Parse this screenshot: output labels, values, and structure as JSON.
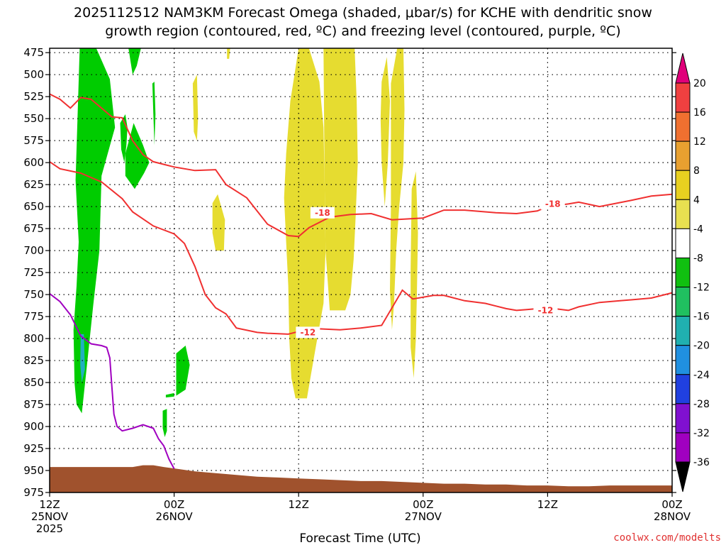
{
  "chart_data": {
    "type": "contour-timeheight",
    "title_line1": "2025112512 NAM3KM Forecast Omega (shaded, μbar/s) for KCHE with dendritic snow",
    "title_line2": "growth region (contoured, red, ºC) and freezing level (contoured, purple, ºC)",
    "xlabel": "Forecast Time (UTC)",
    "credit": "coolwx.com/modelts",
    "x_ticks": [
      {
        "hour": 0,
        "lines": [
          "12Z",
          "25NOV",
          "2025"
        ]
      },
      {
        "hour": 12,
        "lines": [
          "00Z",
          "26NOV"
        ]
      },
      {
        "hour": 24,
        "lines": [
          "12Z"
        ]
      },
      {
        "hour": 36,
        "lines": [
          "00Z",
          "27NOV"
        ]
      },
      {
        "hour": 48,
        "lines": [
          "12Z"
        ]
      },
      {
        "hour": 60,
        "lines": [
          "00Z",
          "28NOV"
        ]
      }
    ],
    "xlim_hours": [
      0,
      60
    ],
    "y_ticks": [
      475,
      500,
      525,
      550,
      575,
      600,
      625,
      650,
      675,
      700,
      725,
      750,
      775,
      800,
      825,
      850,
      875,
      900,
      925,
      950,
      975
    ],
    "ylim_mb": [
      470,
      975
    ],
    "grid": "dotted",
    "colorbar": {
      "labels": [
        "20",
        "16",
        "12",
        "8",
        "4",
        "-4",
        "-8",
        "-12",
        "-16",
        "-20",
        "-24",
        "-28",
        "-32",
        "-36"
      ],
      "colors": [
        "#e0007a",
        "#f04040",
        "#f07030",
        "#e8a030",
        "#e8d020",
        "#e8e050",
        "#ffffff",
        "#10c010",
        "#20c060",
        "#20b0b0",
        "#2090e0",
        "#2040e0",
        "#8010d0",
        "#a000c0",
        "#a8a8a8",
        "#000000"
      ]
    },
    "shading_colors": {
      "green": "#00cc00",
      "yellow": "#e6dc30",
      "cyan": "#20b0c0",
      "terrain": "#a0522d"
    },
    "dendritic_contours": [
      {
        "label": "-18",
        "color": "#f03030",
        "label_at": [
          [
            26.3,
            657
          ],
          [
            48.5,
            647
          ]
        ],
        "points": [
          [
            0,
            522
          ],
          [
            1,
            528
          ],
          [
            2,
            538
          ],
          [
            3,
            526
          ],
          [
            4,
            528
          ],
          [
            5,
            538
          ],
          [
            6,
            548
          ],
          [
            7,
            549
          ],
          [
            8,
            575
          ],
          [
            9,
            591
          ],
          [
            10,
            599
          ],
          [
            11,
            602
          ],
          [
            12,
            605
          ],
          [
            14,
            609
          ],
          [
            16,
            608
          ],
          [
            17,
            625
          ],
          [
            19,
            640
          ],
          [
            21,
            670
          ],
          [
            23,
            683
          ],
          [
            24,
            684
          ],
          [
            25,
            674
          ],
          [
            27,
            662
          ],
          [
            29,
            659
          ],
          [
            31,
            658
          ],
          [
            33,
            665
          ],
          [
            36,
            663
          ],
          [
            38,
            654
          ],
          [
            40,
            654
          ],
          [
            43,
            657
          ],
          [
            45,
            658
          ],
          [
            47,
            655
          ],
          [
            48,
            650
          ],
          [
            50,
            647
          ],
          [
            51,
            645
          ],
          [
            53,
            650
          ],
          [
            56,
            643
          ],
          [
            58,
            638
          ],
          [
            60,
            636
          ]
        ]
      },
      {
        "label": "-12",
        "color": "#f03030",
        "label_at": [
          [
            24.9,
            793
          ],
          [
            47.8,
            768
          ]
        ],
        "points": [
          [
            0,
            599
          ],
          [
            1,
            607
          ],
          [
            3,
            612
          ],
          [
            5,
            622
          ],
          [
            7,
            641
          ],
          [
            8,
            656
          ],
          [
            10,
            672
          ],
          [
            12,
            681
          ],
          [
            13,
            692
          ],
          [
            14,
            718
          ],
          [
            15,
            750
          ],
          [
            16,
            765
          ],
          [
            17,
            772
          ],
          [
            18,
            788
          ],
          [
            20,
            793
          ],
          [
            21,
            794
          ],
          [
            23,
            795
          ],
          [
            24,
            792
          ],
          [
            26,
            789
          ],
          [
            28,
            790
          ],
          [
            30,
            788
          ],
          [
            32,
            785
          ],
          [
            33,
            765
          ],
          [
            34,
            745
          ],
          [
            35,
            755
          ],
          [
            37,
            751
          ],
          [
            38,
            751
          ],
          [
            40,
            757
          ],
          [
            42,
            760
          ],
          [
            43,
            763
          ],
          [
            44,
            766
          ],
          [
            45,
            768
          ],
          [
            46,
            767
          ],
          [
            48,
            765
          ],
          [
            50,
            768
          ],
          [
            51,
            764
          ],
          [
            53,
            759
          ],
          [
            55,
            757
          ],
          [
            58,
            754
          ],
          [
            60,
            748
          ]
        ]
      }
    ],
    "freezing_level": {
      "color": "#a000c0",
      "points": [
        [
          0,
          749
        ],
        [
          1,
          758
        ],
        [
          2,
          773
        ],
        [
          3,
          797
        ],
        [
          4,
          806
        ],
        [
          5,
          808
        ],
        [
          5.5,
          810
        ],
        [
          5.8,
          822
        ],
        [
          6,
          855
        ],
        [
          6.2,
          886
        ],
        [
          6.5,
          900
        ],
        [
          7,
          905
        ],
        [
          8,
          902
        ],
        [
          9,
          898
        ],
        [
          10,
          902
        ],
        [
          10.5,
          914
        ],
        [
          11,
          922
        ],
        [
          11.5,
          937
        ],
        [
          12,
          948
        ]
      ]
    },
    "terrain_top": [
      [
        0,
        946
      ],
      [
        2,
        946
      ],
      [
        4,
        946
      ],
      [
        6,
        946
      ],
      [
        8,
        946
      ],
      [
        9,
        944
      ],
      [
        10,
        944
      ],
      [
        11,
        946
      ],
      [
        14,
        951
      ],
      [
        16,
        953
      ],
      [
        18,
        955
      ],
      [
        20,
        957
      ],
      [
        22,
        958
      ],
      [
        24,
        959
      ],
      [
        26,
        960
      ],
      [
        28,
        961
      ],
      [
        30,
        962
      ],
      [
        32,
        962
      ],
      [
        34,
        963
      ],
      [
        36,
        964
      ],
      [
        38,
        965
      ],
      [
        40,
        965
      ],
      [
        42,
        966
      ],
      [
        44,
        966
      ],
      [
        46,
        967
      ],
      [
        48,
        967
      ],
      [
        50,
        968
      ],
      [
        52,
        968
      ],
      [
        54,
        967
      ],
      [
        56,
        967
      ],
      [
        58,
        967
      ],
      [
        60,
        967
      ]
    ],
    "shading_regions": [
      {
        "color": "green",
        "points": [
          [
            2.9,
            470
          ],
          [
            4.5,
            470
          ],
          [
            5.8,
            505
          ],
          [
            6.3,
            560
          ],
          [
            5.0,
            615
          ],
          [
            4.8,
            700
          ],
          [
            4.2,
            762
          ],
          [
            3.6,
            830
          ],
          [
            3.1,
            885
          ],
          [
            2.6,
            875
          ],
          [
            2.4,
            850
          ],
          [
            2.3,
            790
          ],
          [
            2.6,
            740
          ],
          [
            2.8,
            690
          ],
          [
            2.5,
            620
          ]
        ]
      },
      {
        "color": "green",
        "points": [
          [
            6.8,
            555
          ],
          [
            7.3,
            545
          ],
          [
            7.5,
            560
          ],
          [
            7.4,
            580
          ],
          [
            7.2,
            600
          ],
          [
            6.9,
            585
          ]
        ]
      },
      {
        "color": "green",
        "points": [
          [
            7.3,
            590
          ],
          [
            8.1,
            555
          ],
          [
            9.0,
            580
          ],
          [
            9.6,
            600
          ],
          [
            9.1,
            612
          ],
          [
            8.2,
            630
          ],
          [
            7.3,
            615
          ]
        ]
      },
      {
        "color": "green",
        "points": [
          [
            7.6,
            470
          ],
          [
            8.8,
            470
          ],
          [
            8.4,
            490
          ],
          [
            8.0,
            500
          ]
        ]
      },
      {
        "color": "green",
        "points": [
          [
            9.9,
            510
          ],
          [
            10.1,
            508
          ],
          [
            10.2,
            545
          ],
          [
            10.1,
            580
          ],
          [
            10.0,
            545
          ]
        ]
      },
      {
        "color": "green",
        "points": [
          [
            12.2,
            817
          ],
          [
            13.1,
            808
          ],
          [
            13.5,
            830
          ],
          [
            13.1,
            858
          ],
          [
            12.2,
            865
          ]
        ]
      },
      {
        "color": "green",
        "points": [
          [
            11.2,
            864
          ],
          [
            12.0,
            862
          ],
          [
            12.0,
            866
          ],
          [
            11.2,
            867
          ]
        ]
      },
      {
        "color": "green",
        "points": [
          [
            10.9,
            882
          ],
          [
            11.3,
            880
          ],
          [
            11.3,
            905
          ],
          [
            11.1,
            912
          ],
          [
            10.9,
            902
          ]
        ]
      },
      {
        "color": "cyan",
        "points": [
          [
            3.0,
            795
          ],
          [
            3.3,
            795
          ],
          [
            3.4,
            835
          ],
          [
            3.1,
            850
          ],
          [
            2.95,
            830
          ]
        ]
      },
      {
        "color": "yellow",
        "points": [
          [
            24.0,
            470
          ],
          [
            25.0,
            470
          ],
          [
            26.0,
            508
          ],
          [
            26.4,
            560
          ],
          [
            26.5,
            620
          ],
          [
            26.6,
            700
          ],
          [
            26.4,
            760
          ],
          [
            25.8,
            800
          ],
          [
            25.2,
            840
          ],
          [
            24.8,
            868
          ],
          [
            23.7,
            868
          ],
          [
            23.3,
            845
          ],
          [
            23.1,
            800
          ],
          [
            23.0,
            740
          ],
          [
            22.8,
            690
          ],
          [
            22.6,
            640
          ],
          [
            22.8,
            590
          ],
          [
            23.2,
            530
          ]
        ]
      },
      {
        "color": "yellow",
        "points": [
          [
            26.4,
            470
          ],
          [
            29.4,
            470
          ],
          [
            29.6,
            530
          ],
          [
            29.7,
            600
          ],
          [
            29.5,
            660
          ],
          [
            29.3,
            710
          ],
          [
            29.0,
            750
          ],
          [
            28.5,
            768
          ],
          [
            27.0,
            768
          ],
          [
            26.6,
            700
          ],
          [
            26.5,
            620
          ]
        ]
      },
      {
        "color": "yellow",
        "points": [
          [
            32.0,
            508
          ],
          [
            32.5,
            480
          ],
          [
            32.8,
            530
          ],
          [
            32.6,
            600
          ],
          [
            32.3,
            650
          ],
          [
            32.0,
            600
          ],
          [
            31.9,
            550
          ]
        ]
      },
      {
        "color": "yellow",
        "points": [
          [
            32.9,
            510
          ],
          [
            33.5,
            470
          ],
          [
            34.1,
            470
          ],
          [
            34.2,
            540
          ],
          [
            34.1,
            600
          ],
          [
            33.7,
            650
          ],
          [
            33.4,
            700
          ],
          [
            33.2,
            760
          ],
          [
            33.0,
            790
          ],
          [
            32.8,
            745
          ],
          [
            32.9,
            650
          ],
          [
            32.9,
            560
          ]
        ]
      },
      {
        "color": "yellow",
        "points": [
          [
            34.9,
            630
          ],
          [
            35.3,
            610
          ],
          [
            35.5,
            680
          ],
          [
            35.4,
            750
          ],
          [
            35.3,
            800
          ],
          [
            35.1,
            845
          ],
          [
            34.8,
            810
          ],
          [
            34.8,
            720
          ]
        ]
      },
      {
        "color": "yellow",
        "points": [
          [
            15.7,
            646
          ],
          [
            16.2,
            636
          ],
          [
            16.9,
            665
          ],
          [
            16.8,
            700
          ],
          [
            16.0,
            700
          ],
          [
            15.7,
            680
          ]
        ]
      },
      {
        "color": "yellow",
        "points": [
          [
            13.8,
            510
          ],
          [
            14.2,
            500
          ],
          [
            14.3,
            550
          ],
          [
            14.2,
            575
          ],
          [
            13.9,
            565
          ]
        ]
      },
      {
        "color": "yellow",
        "points": [
          [
            17.1,
            470
          ],
          [
            17.4,
            470
          ],
          [
            17.3,
            482
          ],
          [
            17.1,
            482
          ]
        ]
      }
    ]
  }
}
